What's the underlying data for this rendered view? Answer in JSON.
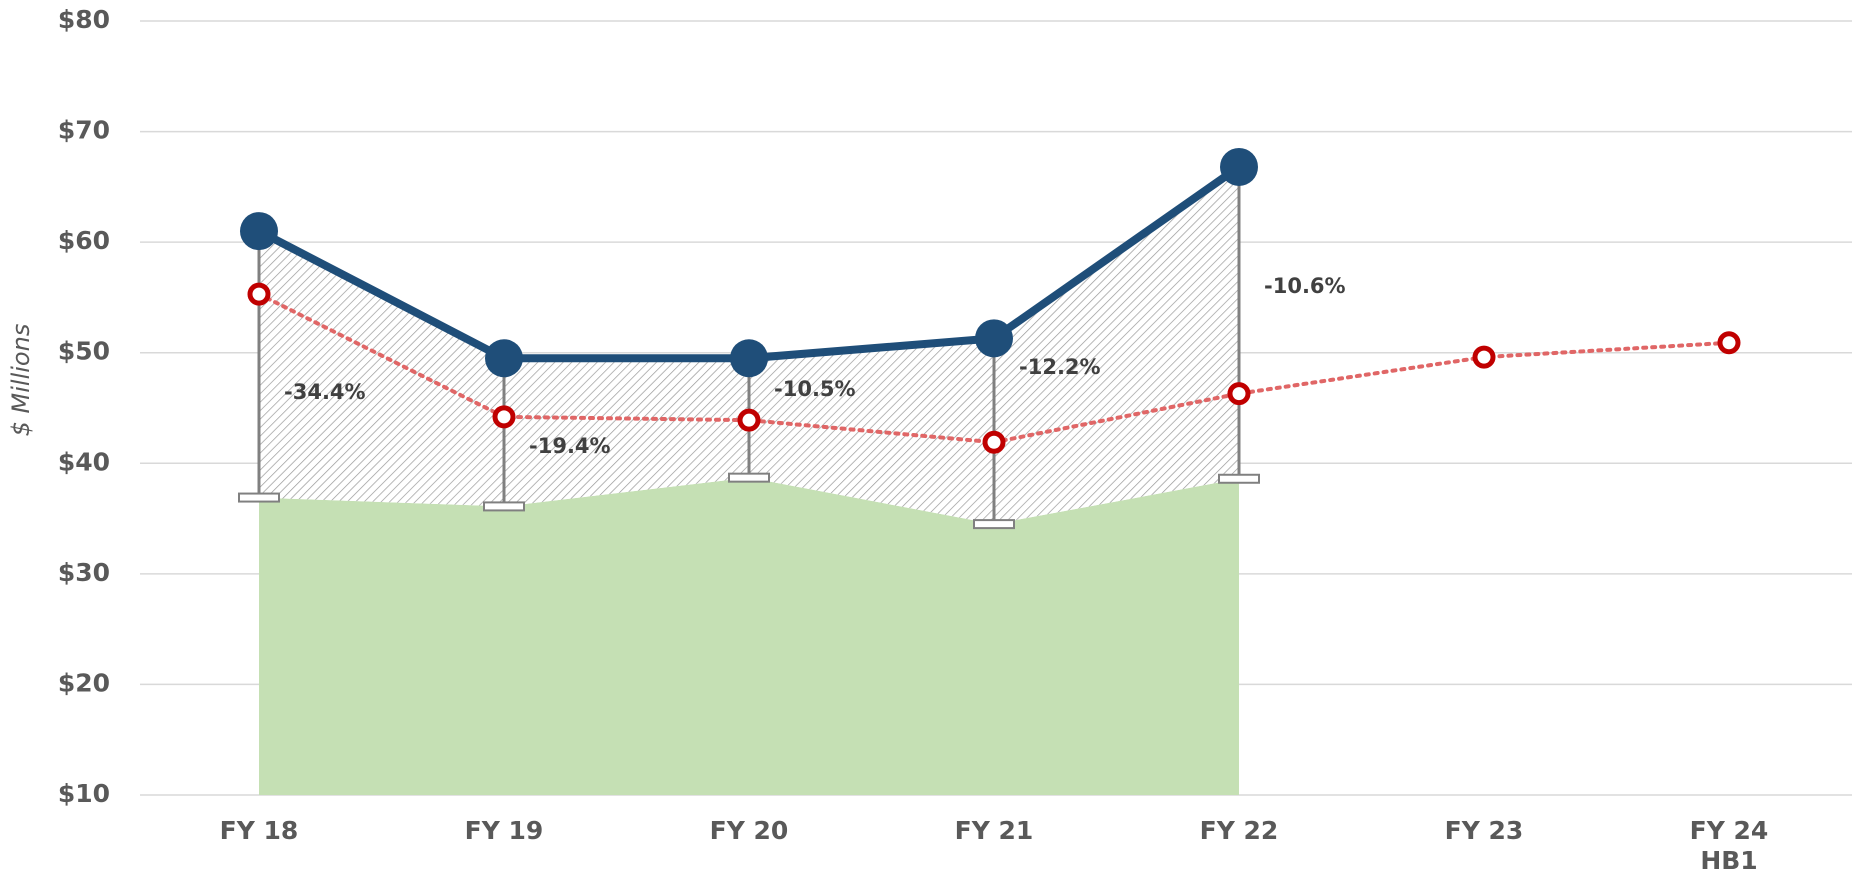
{
  "chart_data": {
    "type": "line",
    "y_label": "$ Millions",
    "categories": [
      "FY 18",
      "FY 19",
      "FY 20",
      "FY 21",
      "FY 22",
      "FY 23",
      "FY 24\nHB1"
    ],
    "series": [
      {
        "type": "area",
        "color": "#c5e0b4",
        "values": [
          36.9,
          36.1,
          38.7,
          34.5,
          38.6,
          null,
          null
        ]
      },
      {
        "type": "line",
        "color": "#1f4e79",
        "values": [
          61.0,
          49.5,
          49.5,
          51.3,
          66.8,
          null,
          null
        ]
      },
      {
        "type": "dotted",
        "color": "#c00000",
        "values": [
          55.3,
          44.2,
          43.9,
          41.9,
          46.3,
          49.6,
          50.9
        ]
      }
    ],
    "annotations": [
      "-34.4%",
      "-19.4%",
      "-10.5%",
      "-12.2%",
      "-10.6%"
    ],
    "ylim": [
      10,
      80
    ],
    "yticks": [
      {
        "value": 10,
        "label": "$10"
      },
      {
        "value": 20,
        "label": "$20"
      },
      {
        "value": 30,
        "label": "$30"
      },
      {
        "value": 40,
        "label": "$40"
      },
      {
        "value": 50,
        "label": "$50"
      },
      {
        "value": 60,
        "label": "$60"
      },
      {
        "value": 70,
        "label": "$70"
      },
      {
        "value": 80,
        "label": "$80"
      }
    ],
    "grid": true
  }
}
